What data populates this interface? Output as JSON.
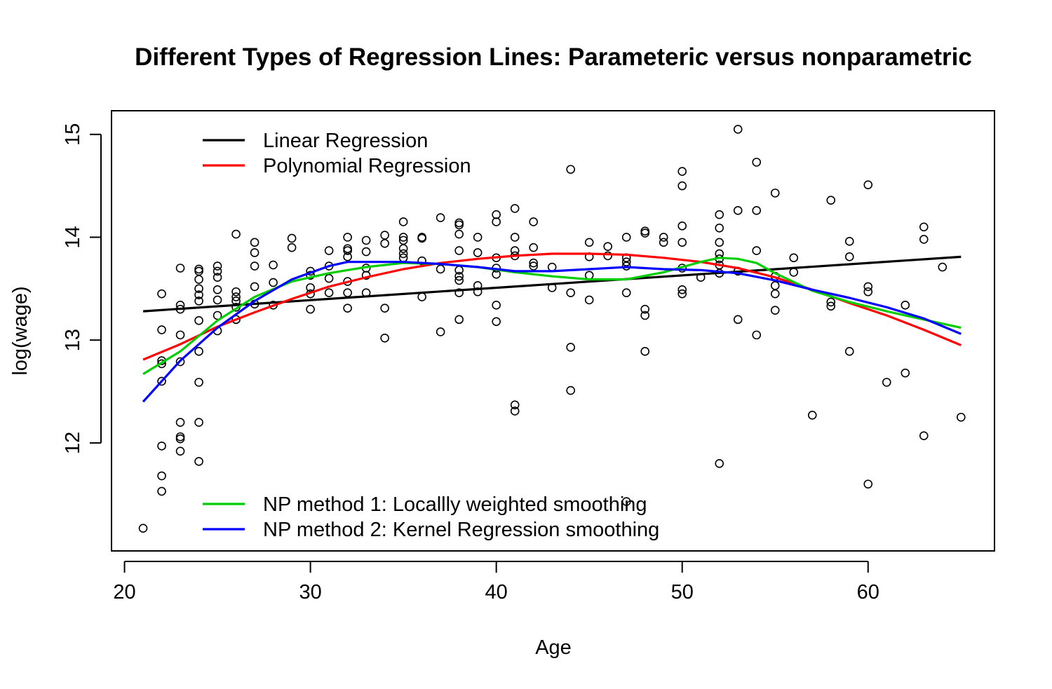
{
  "chart_data": {
    "type": "scatter",
    "title": "Different Types of Regression Lines: Parameteric versus nonparametric",
    "xlabel": "Age",
    "ylabel": "log(wage)",
    "xlim": [
      19.3,
      66.8
    ],
    "ylim": [
      10.95,
      15.23
    ],
    "xticks": [
      20,
      30,
      40,
      50,
      60
    ],
    "yticks": [
      12,
      13,
      14,
      15
    ],
    "grid": false,
    "points": [
      {
        "x": 21,
        "y": 11.17
      },
      {
        "x": 22,
        "y": 13.45
      },
      {
        "x": 22,
        "y": 13.1
      },
      {
        "x": 22,
        "y": 12.8
      },
      {
        "x": 22,
        "y": 12.77
      },
      {
        "x": 22,
        "y": 12.6
      },
      {
        "x": 22,
        "y": 11.97
      },
      {
        "x": 22,
        "y": 11.68
      },
      {
        "x": 22,
        "y": 11.53
      },
      {
        "x": 23,
        "y": 13.7
      },
      {
        "x": 23,
        "y": 13.34
      },
      {
        "x": 23,
        "y": 13.3
      },
      {
        "x": 23,
        "y": 13.05
      },
      {
        "x": 23,
        "y": 12.79
      },
      {
        "x": 23,
        "y": 12.2
      },
      {
        "x": 23,
        "y": 12.06
      },
      {
        "x": 23,
        "y": 12.04
      },
      {
        "x": 23,
        "y": 11.92
      },
      {
        "x": 24,
        "y": 13.69
      },
      {
        "x": 24,
        "y": 13.67
      },
      {
        "x": 24,
        "y": 13.59
      },
      {
        "x": 24,
        "y": 13.5
      },
      {
        "x": 24,
        "y": 13.44
      },
      {
        "x": 24,
        "y": 13.38
      },
      {
        "x": 24,
        "y": 13.19
      },
      {
        "x": 24,
        "y": 12.89
      },
      {
        "x": 24,
        "y": 12.59
      },
      {
        "x": 24,
        "y": 12.2
      },
      {
        "x": 24,
        "y": 11.82
      },
      {
        "x": 25,
        "y": 13.72
      },
      {
        "x": 25,
        "y": 13.67
      },
      {
        "x": 25,
        "y": 13.61
      },
      {
        "x": 25,
        "y": 13.49
      },
      {
        "x": 25,
        "y": 13.39
      },
      {
        "x": 25,
        "y": 13.24
      },
      {
        "x": 25,
        "y": 13.09
      },
      {
        "x": 26,
        "y": 14.03
      },
      {
        "x": 26,
        "y": 13.47
      },
      {
        "x": 26,
        "y": 13.42
      },
      {
        "x": 26,
        "y": 13.38
      },
      {
        "x": 26,
        "y": 13.32
      },
      {
        "x": 26,
        "y": 13.2
      },
      {
        "x": 27,
        "y": 13.95
      },
      {
        "x": 27,
        "y": 13.85
      },
      {
        "x": 27,
        "y": 13.72
      },
      {
        "x": 27,
        "y": 13.52
      },
      {
        "x": 27,
        "y": 13.35
      },
      {
        "x": 28,
        "y": 13.73
      },
      {
        "x": 28,
        "y": 13.56
      },
      {
        "x": 28,
        "y": 13.34
      },
      {
        "x": 29,
        "y": 13.99
      },
      {
        "x": 29,
        "y": 13.9
      },
      {
        "x": 30,
        "y": 13.67
      },
      {
        "x": 30,
        "y": 13.63
      },
      {
        "x": 30,
        "y": 13.51
      },
      {
        "x": 30,
        "y": 13.45
      },
      {
        "x": 30,
        "y": 13.3
      },
      {
        "x": 31,
        "y": 13.87
      },
      {
        "x": 31,
        "y": 13.72
      },
      {
        "x": 31,
        "y": 13.6
      },
      {
        "x": 31,
        "y": 13.46
      },
      {
        "x": 32,
        "y": 14.0
      },
      {
        "x": 32,
        "y": 13.89
      },
      {
        "x": 32,
        "y": 13.87
      },
      {
        "x": 32,
        "y": 13.81
      },
      {
        "x": 32,
        "y": 13.57
      },
      {
        "x": 32,
        "y": 13.46
      },
      {
        "x": 32,
        "y": 13.31
      },
      {
        "x": 33,
        "y": 13.97
      },
      {
        "x": 33,
        "y": 13.86
      },
      {
        "x": 33,
        "y": 13.7
      },
      {
        "x": 33,
        "y": 13.63
      },
      {
        "x": 33,
        "y": 13.46
      },
      {
        "x": 34,
        "y": 14.02
      },
      {
        "x": 34,
        "y": 13.94
      },
      {
        "x": 34,
        "y": 13.31
      },
      {
        "x": 34,
        "y": 13.02
      },
      {
        "x": 35,
        "y": 14.15
      },
      {
        "x": 35,
        "y": 14.0
      },
      {
        "x": 35,
        "y": 13.97
      },
      {
        "x": 35,
        "y": 13.89
      },
      {
        "x": 35,
        "y": 13.84
      },
      {
        "x": 35,
        "y": 13.8
      },
      {
        "x": 36,
        "y": 14.0
      },
      {
        "x": 36,
        "y": 13.99
      },
      {
        "x": 36,
        "y": 13.77
      },
      {
        "x": 36,
        "y": 13.42
      },
      {
        "x": 37,
        "y": 14.19
      },
      {
        "x": 37,
        "y": 13.69
      },
      {
        "x": 37,
        "y": 13.08
      },
      {
        "x": 38,
        "y": 14.14
      },
      {
        "x": 38,
        "y": 14.12
      },
      {
        "x": 38,
        "y": 14.03
      },
      {
        "x": 38,
        "y": 13.87
      },
      {
        "x": 38,
        "y": 13.68
      },
      {
        "x": 38,
        "y": 13.62
      },
      {
        "x": 38,
        "y": 13.58
      },
      {
        "x": 38,
        "y": 13.46
      },
      {
        "x": 38,
        "y": 13.2
      },
      {
        "x": 39,
        "y": 14.0
      },
      {
        "x": 39,
        "y": 13.85
      },
      {
        "x": 39,
        "y": 13.53
      },
      {
        "x": 39,
        "y": 13.47
      },
      {
        "x": 40,
        "y": 14.22
      },
      {
        "x": 40,
        "y": 14.15
      },
      {
        "x": 40,
        "y": 13.8
      },
      {
        "x": 40,
        "y": 13.7
      },
      {
        "x": 40,
        "y": 13.64
      },
      {
        "x": 40,
        "y": 13.34
      },
      {
        "x": 40,
        "y": 13.18
      },
      {
        "x": 41,
        "y": 14.28
      },
      {
        "x": 41,
        "y": 14.0
      },
      {
        "x": 41,
        "y": 13.87
      },
      {
        "x": 41,
        "y": 13.82
      },
      {
        "x": 41,
        "y": 12.37
      },
      {
        "x": 41,
        "y": 12.31
      },
      {
        "x": 42,
        "y": 14.15
      },
      {
        "x": 42,
        "y": 13.9
      },
      {
        "x": 42,
        "y": 13.75
      },
      {
        "x": 42,
        "y": 13.72
      },
      {
        "x": 43,
        "y": 13.71
      },
      {
        "x": 43,
        "y": 13.51
      },
      {
        "x": 44,
        "y": 14.66
      },
      {
        "x": 44,
        "y": 13.46
      },
      {
        "x": 44,
        "y": 12.93
      },
      {
        "x": 44,
        "y": 12.51
      },
      {
        "x": 45,
        "y": 13.95
      },
      {
        "x": 45,
        "y": 13.81
      },
      {
        "x": 45,
        "y": 13.63
      },
      {
        "x": 45,
        "y": 13.39
      },
      {
        "x": 46,
        "y": 13.91
      },
      {
        "x": 46,
        "y": 13.82
      },
      {
        "x": 47,
        "y": 14.0
      },
      {
        "x": 47,
        "y": 13.8
      },
      {
        "x": 47,
        "y": 13.76
      },
      {
        "x": 47,
        "y": 13.72
      },
      {
        "x": 47,
        "y": 13.46
      },
      {
        "x": 47,
        "y": 11.43
      },
      {
        "x": 48,
        "y": 14.06
      },
      {
        "x": 48,
        "y": 14.04
      },
      {
        "x": 48,
        "y": 13.3
      },
      {
        "x": 48,
        "y": 13.24
      },
      {
        "x": 48,
        "y": 12.89
      },
      {
        "x": 49,
        "y": 14.0
      },
      {
        "x": 49,
        "y": 13.95
      },
      {
        "x": 50,
        "y": 14.64
      },
      {
        "x": 50,
        "y": 14.5
      },
      {
        "x": 50,
        "y": 14.11
      },
      {
        "x": 50,
        "y": 13.95
      },
      {
        "x": 50,
        "y": 13.7
      },
      {
        "x": 50,
        "y": 13.49
      },
      {
        "x": 50,
        "y": 13.45
      },
      {
        "x": 51,
        "y": 13.61
      },
      {
        "x": 52,
        "y": 14.22
      },
      {
        "x": 52,
        "y": 14.09
      },
      {
        "x": 52,
        "y": 13.95
      },
      {
        "x": 52,
        "y": 13.84
      },
      {
        "x": 52,
        "y": 13.79
      },
      {
        "x": 52,
        "y": 13.73
      },
      {
        "x": 52,
        "y": 13.65
      },
      {
        "x": 52,
        "y": 11.8
      },
      {
        "x": 53,
        "y": 15.05
      },
      {
        "x": 53,
        "y": 14.26
      },
      {
        "x": 53,
        "y": 13.67
      },
      {
        "x": 53,
        "y": 13.2
      },
      {
        "x": 54,
        "y": 14.73
      },
      {
        "x": 54,
        "y": 14.26
      },
      {
        "x": 54,
        "y": 13.87
      },
      {
        "x": 54,
        "y": 13.05
      },
      {
        "x": 55,
        "y": 14.43
      },
      {
        "x": 55,
        "y": 13.62
      },
      {
        "x": 55,
        "y": 13.53
      },
      {
        "x": 55,
        "y": 13.45
      },
      {
        "x": 55,
        "y": 13.29
      },
      {
        "x": 56,
        "y": 13.8
      },
      {
        "x": 56,
        "y": 13.66
      },
      {
        "x": 57,
        "y": 12.27
      },
      {
        "x": 58,
        "y": 14.36
      },
      {
        "x": 58,
        "y": 13.37
      },
      {
        "x": 58,
        "y": 13.33
      },
      {
        "x": 59,
        "y": 13.96
      },
      {
        "x": 59,
        "y": 13.81
      },
      {
        "x": 59,
        "y": 12.89
      },
      {
        "x": 60,
        "y": 14.51
      },
      {
        "x": 60,
        "y": 13.52
      },
      {
        "x": 60,
        "y": 13.47
      },
      {
        "x": 60,
        "y": 11.6
      },
      {
        "x": 61,
        "y": 12.59
      },
      {
        "x": 62,
        "y": 13.34
      },
      {
        "x": 62,
        "y": 12.68
      },
      {
        "x": 63,
        "y": 14.1
      },
      {
        "x": 63,
        "y": 13.98
      },
      {
        "x": 63,
        "y": 12.07
      },
      {
        "x": 64,
        "y": 13.71
      },
      {
        "x": 65,
        "y": 12.25
      }
    ],
    "series": [
      {
        "name": "Linear Regression",
        "color": "#000000",
        "x": [
          21,
          65
        ],
        "y": [
          13.28,
          13.81
        ]
      },
      {
        "name": "Polynomial Regression",
        "color": "#ff0000",
        "x": [
          21,
          23,
          25,
          27,
          29,
          31,
          33,
          35,
          37,
          39,
          41,
          43,
          45,
          47,
          49,
          51,
          53,
          55,
          57,
          59,
          61,
          63,
          65
        ],
        "y": [
          12.81,
          12.96,
          13.13,
          13.27,
          13.4,
          13.52,
          13.61,
          13.69,
          13.75,
          13.79,
          13.82,
          13.84,
          13.84,
          13.83,
          13.8,
          13.76,
          13.7,
          13.61,
          13.49,
          13.36,
          13.24,
          13.1,
          12.95
        ]
      },
      {
        "name": "NP method 1: Locallly weighted smoothing",
        "color": "#00cd00",
        "x": [
          21,
          23,
          25,
          27,
          29,
          31,
          33,
          35,
          37,
          39,
          41,
          43,
          45,
          47,
          49,
          51,
          52,
          53,
          54,
          55,
          57,
          59,
          61,
          63,
          65
        ],
        "y": [
          12.67,
          12.89,
          13.19,
          13.42,
          13.57,
          13.65,
          13.71,
          13.75,
          13.74,
          13.71,
          13.66,
          13.62,
          13.59,
          13.59,
          13.66,
          13.76,
          13.8,
          13.79,
          13.75,
          13.65,
          13.48,
          13.37,
          13.28,
          13.2,
          13.12
        ]
      },
      {
        "name": "NP method 2: Kernel Regression smoothing",
        "color": "#0000ff",
        "x": [
          21,
          23,
          25,
          27,
          29,
          31,
          32,
          33,
          35,
          37,
          39,
          41,
          43,
          45,
          47,
          49,
          51,
          53,
          55,
          57,
          59,
          61,
          63,
          65
        ],
        "y": [
          12.4,
          12.8,
          13.12,
          13.38,
          13.59,
          13.72,
          13.76,
          13.76,
          13.76,
          13.74,
          13.71,
          13.67,
          13.67,
          13.69,
          13.71,
          13.69,
          13.68,
          13.65,
          13.58,
          13.49,
          13.41,
          13.32,
          13.21,
          13.06
        ]
      }
    ],
    "legends": [
      {
        "position": "top-left",
        "entries": [
          "Linear Regression",
          "Polynomial Regression"
        ]
      },
      {
        "position": "bottom-left",
        "entries": [
          "NP method 1: Locallly weighted smoothing",
          "NP method 2: Kernel Regression smoothing"
        ]
      }
    ]
  }
}
